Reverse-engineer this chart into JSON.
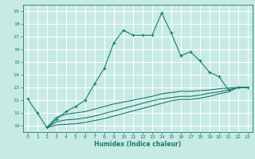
{
  "xlabel": "Humidex (Indice chaleur)",
  "bg_color": "#c8eae4",
  "line_color": "#1a7a6e",
  "grid_color": "#ffffff",
  "xlim": [
    -0.5,
    23.5
  ],
  "ylim": [
    9.5,
    19.5
  ],
  "xticks": [
    0,
    1,
    2,
    3,
    4,
    5,
    6,
    7,
    8,
    9,
    10,
    11,
    12,
    13,
    14,
    15,
    16,
    17,
    18,
    19,
    20,
    21,
    22,
    23
  ],
  "yticks": [
    10,
    11,
    12,
    13,
    14,
    15,
    16,
    17,
    18,
    19
  ],
  "line1_x": [
    0,
    1,
    2,
    3,
    4,
    5,
    6,
    7,
    8,
    9,
    10,
    11,
    12,
    13,
    14,
    15,
    16,
    17,
    18,
    19,
    20,
    21,
    22,
    23
  ],
  "line1_y": [
    12.1,
    11.0,
    9.85,
    10.5,
    11.1,
    11.5,
    12.0,
    13.3,
    14.5,
    16.5,
    17.5,
    17.1,
    17.1,
    17.1,
    18.85,
    17.3,
    15.5,
    15.8,
    15.1,
    14.2,
    13.85,
    12.8,
    13.0,
    13.0
  ],
  "line2_x": [
    2,
    3,
    4,
    5,
    6,
    7,
    8,
    9,
    10,
    11,
    12,
    13,
    14,
    15,
    16,
    17,
    18,
    19,
    20,
    21,
    22,
    23
  ],
  "line2_y": [
    9.85,
    10.65,
    10.9,
    11.0,
    11.1,
    11.3,
    11.5,
    11.7,
    11.85,
    12.0,
    12.15,
    12.3,
    12.5,
    12.6,
    12.7,
    12.7,
    12.75,
    12.8,
    12.9,
    12.95,
    13.0,
    13.0
  ],
  "line3_x": [
    2,
    3,
    4,
    5,
    6,
    7,
    8,
    9,
    10,
    11,
    12,
    13,
    14,
    15,
    16,
    17,
    18,
    19,
    20,
    21,
    22,
    23
  ],
  "line3_y": [
    9.85,
    10.3,
    10.45,
    10.5,
    10.6,
    10.75,
    10.95,
    11.15,
    11.35,
    11.55,
    11.75,
    11.95,
    12.1,
    12.2,
    12.3,
    12.3,
    12.4,
    12.55,
    12.65,
    12.8,
    13.0,
    13.0
  ],
  "line4_x": [
    2,
    3,
    4,
    5,
    6,
    7,
    8,
    9,
    10,
    11,
    12,
    13,
    14,
    15,
    16,
    17,
    18,
    19,
    20,
    21,
    22,
    23
  ],
  "line4_y": [
    9.85,
    10.05,
    10.1,
    10.15,
    10.25,
    10.4,
    10.55,
    10.75,
    10.95,
    11.15,
    11.35,
    11.55,
    11.75,
    11.95,
    12.05,
    12.05,
    12.15,
    12.3,
    12.5,
    12.65,
    13.0,
    13.0
  ]
}
